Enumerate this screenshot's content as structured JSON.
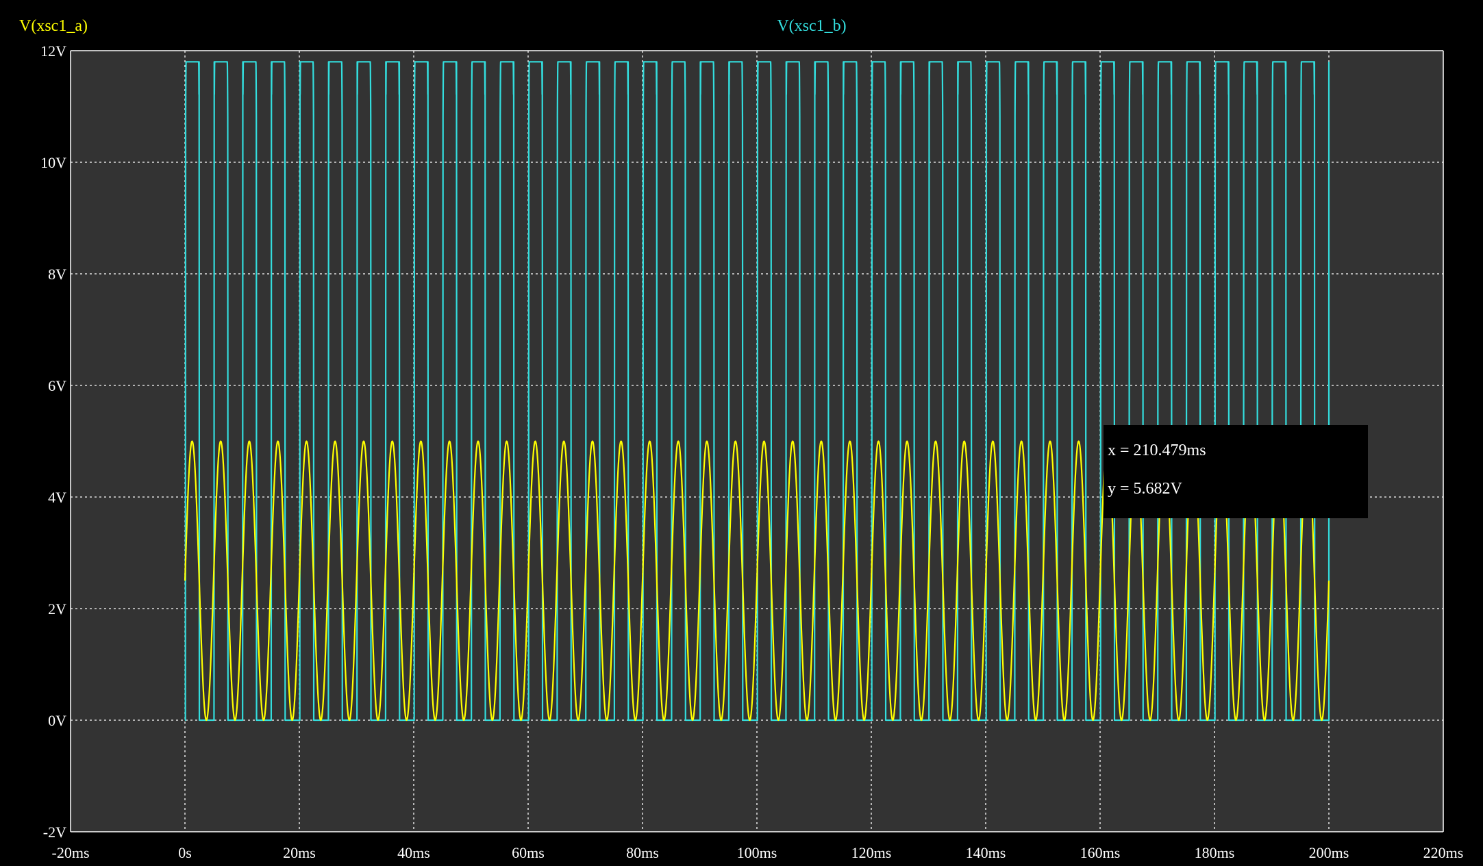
{
  "colors": {
    "background": "#000000",
    "plot_area": "#333333",
    "grid": "#ffffff",
    "series_a": "#ffff00",
    "series_b": "#33dddd"
  },
  "cursor_readout": {
    "x_text": "x = 210.479ms",
    "y_text": "y = 5.682V"
  },
  "chart_data": {
    "type": "line",
    "xlim": [
      -20,
      220
    ],
    "ylim": [
      -2,
      12
    ],
    "x_ticks": [
      -20,
      0,
      20,
      40,
      60,
      80,
      100,
      120,
      140,
      160,
      180,
      200,
      220
    ],
    "x_tick_labels": [
      "-20ms",
      "0s",
      "20ms",
      "40ms",
      "60ms",
      "80ms",
      "100ms",
      "120ms",
      "140ms",
      "160ms",
      "180ms",
      "200ms",
      "220ms"
    ],
    "y_ticks": [
      -2,
      0,
      2,
      4,
      6,
      8,
      10,
      12
    ],
    "y_tick_labels": [
      "-2V",
      "0V",
      "2V",
      "4V",
      "6V",
      "8V",
      "10V",
      "12V"
    ],
    "grid": true,
    "series": [
      {
        "name": "V(xsc1_a)",
        "color": "#ffff00",
        "waveform": "sine",
        "t_start": 0,
        "t_end": 200,
        "period": 5,
        "offset": 2.5,
        "amplitude": 2.5,
        "initial_value": 2.5
      },
      {
        "name": "V(xsc1_b)",
        "color": "#33dddd",
        "waveform": "square",
        "t_start": 0,
        "t_end": 200,
        "period": 5,
        "high": 11.8,
        "low": 0,
        "high_start_phase": 0.02,
        "high_end_phase": 0.5
      }
    ]
  }
}
